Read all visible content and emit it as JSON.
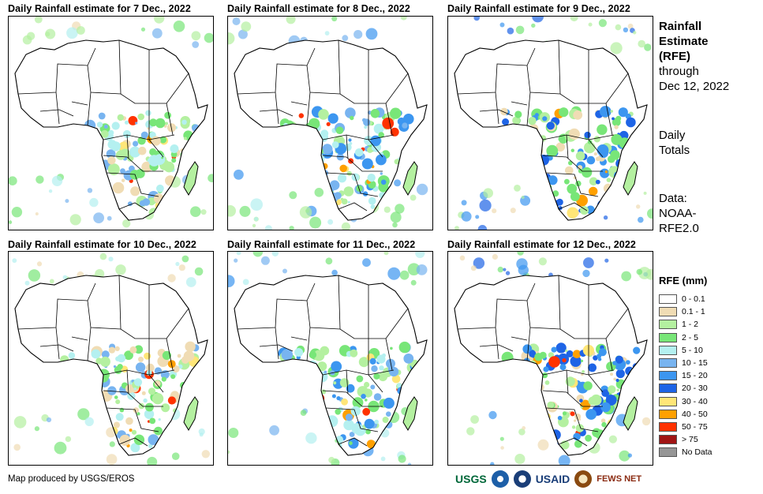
{
  "panels": [
    {
      "title": "Daily Rainfall estimate for 7 Dec., 2022"
    },
    {
      "title": "Daily Rainfall estimate for 8 Dec., 2022"
    },
    {
      "title": "Daily Rainfall estimate for 9 Dec., 2022"
    },
    {
      "title": "Daily Rainfall estimate for 10 Dec., 2022"
    },
    {
      "title": "Daily Rainfall estimate for 11 Dec., 2022"
    },
    {
      "title": "Daily Rainfall estimate for 12 Dec., 2022"
    }
  ],
  "sidebar": {
    "title_line1": "Rainfall",
    "title_line2": "Estimate",
    "title_line3": "(RFE)",
    "through_label": "through",
    "through_date": "Dec 12, 2022",
    "totals_line1": "Daily",
    "totals_line2": "Totals",
    "data_line1": "Data:",
    "data_line2": "NOAA-",
    "data_line3": "RFE2.0"
  },
  "legend": {
    "title": "RFE (mm)",
    "items": [
      {
        "label": "0 - 0.1",
        "color": "#ffffff"
      },
      {
        "label": "0.1 - 1",
        "color": "#f0dcb4"
      },
      {
        "label": "1 - 2",
        "color": "#b4f0a0"
      },
      {
        "label": "2 - 5",
        "color": "#78e678"
      },
      {
        "label": "5 - 10",
        "color": "#b4f0f0"
      },
      {
        "label": "10 - 15",
        "color": "#78b4f0"
      },
      {
        "label": "15 - 20",
        "color": "#3c96f0"
      },
      {
        "label": "20 - 30",
        "color": "#1e64e6"
      },
      {
        "label": "30 - 40",
        "color": "#ffe678"
      },
      {
        "label": "40 - 50",
        "color": "#ffa000"
      },
      {
        "label": "50 - 75",
        "color": "#ff3200"
      },
      {
        "label": "> 75",
        "color": "#a01414"
      },
      {
        "label": "No Data",
        "color": "#969696"
      }
    ]
  },
  "footer": {
    "credit": "Map produced by USGS/EROS",
    "logos": [
      "USGS",
      "NOAA",
      "USAID",
      "FEWS NET"
    ]
  }
}
